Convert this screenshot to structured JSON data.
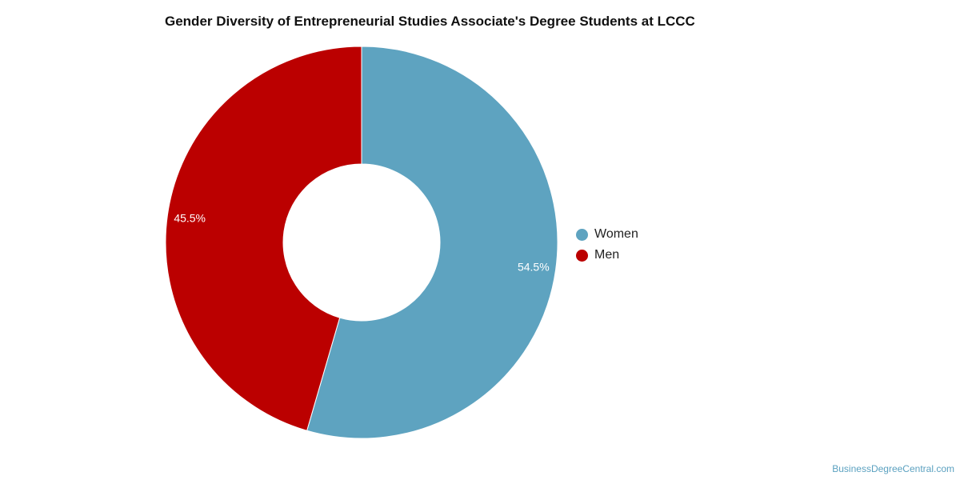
{
  "chart_data": {
    "type": "pie",
    "title": "Gender Diversity of Entrepreneurial Studies Associate's Degree Students at LCCC",
    "categories": [
      "Women",
      "Men"
    ],
    "values": [
      54.5,
      45.5
    ],
    "labels": [
      "54.5%",
      "45.5%"
    ],
    "colors": [
      "#5ea3c0",
      "#bb0000"
    ],
    "donut": true,
    "legend_position": "right"
  },
  "credit": "BusinessDegreeCentral.com"
}
